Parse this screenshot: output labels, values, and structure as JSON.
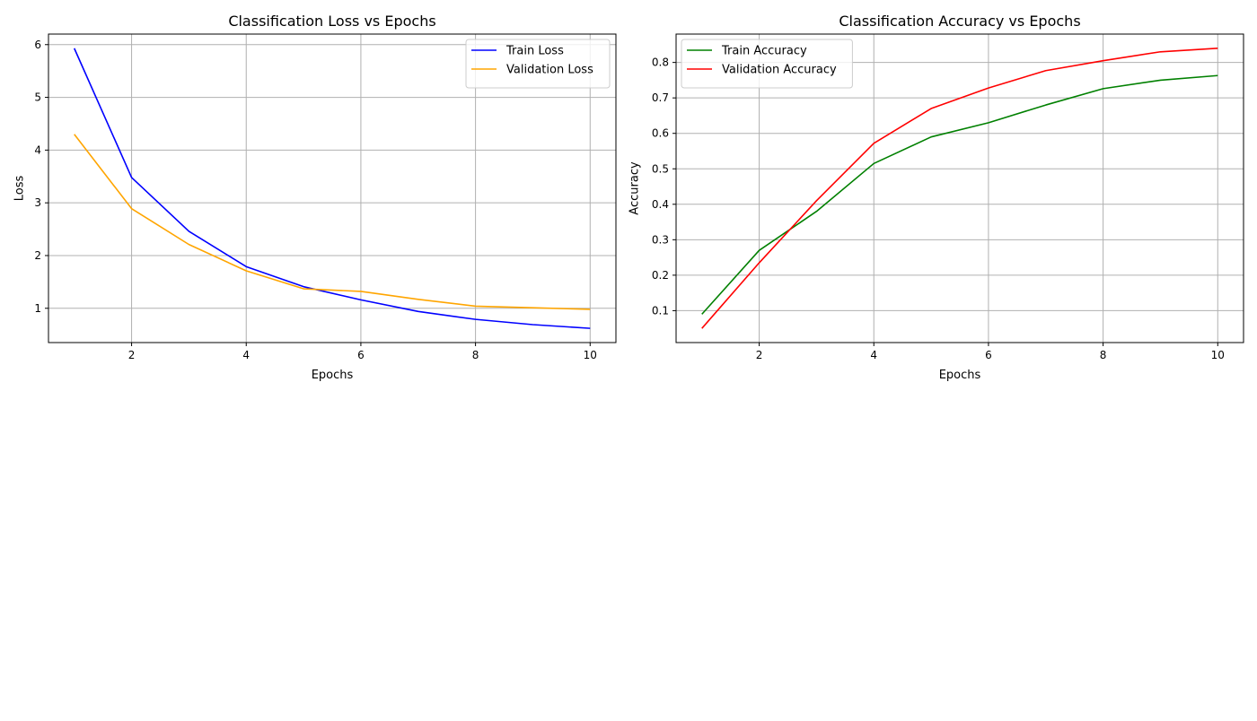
{
  "chart_data": [
    {
      "type": "line",
      "title": "Classification Loss vs Epochs",
      "xlabel": "Epochs",
      "ylabel": "Loss",
      "xlim": [
        0.55,
        10.45
      ],
      "ylim": [
        0.35,
        6.2
      ],
      "xticks": [
        2,
        4,
        6,
        8,
        10
      ],
      "yticks": [
        1,
        2,
        3,
        4,
        5,
        6
      ],
      "grid": true,
      "legend": "top-right",
      "x": [
        1,
        2,
        3,
        4,
        5,
        6,
        7,
        8,
        9,
        10
      ],
      "series": [
        {
          "name": "Train Loss",
          "color": "#0000ff",
          "values": [
            5.93,
            3.48,
            2.46,
            1.79,
            1.41,
            1.16,
            0.94,
            0.79,
            0.69,
            0.62
          ]
        },
        {
          "name": "Validation Loss",
          "color": "#ffa500",
          "values": [
            4.3,
            2.89,
            2.21,
            1.71,
            1.37,
            1.32,
            1.17,
            1.04,
            1.01,
            0.98
          ]
        }
      ]
    },
    {
      "type": "line",
      "title": "Classification Accuracy vs Epochs",
      "xlabel": "Epochs",
      "ylabel": "Accuracy",
      "xlim": [
        0.55,
        10.45
      ],
      "ylim": [
        0.01,
        0.88
      ],
      "xticks": [
        2,
        4,
        6,
        8,
        10
      ],
      "yticks": [
        0.1,
        0.2,
        0.3,
        0.4,
        0.5,
        0.6,
        0.7,
        0.8
      ],
      "grid": true,
      "legend": "top-left",
      "x": [
        1,
        2,
        3,
        4,
        5,
        6,
        7,
        8,
        9,
        10
      ],
      "series": [
        {
          "name": "Train Accuracy",
          "color": "#008000",
          "values": [
            0.09,
            0.27,
            0.38,
            0.515,
            0.59,
            0.63,
            0.68,
            0.726,
            0.75,
            0.763
          ]
        },
        {
          "name": "Validation Accuracy",
          "color": "#ff0000",
          "values": [
            0.05,
            0.235,
            0.41,
            0.572,
            0.67,
            0.728,
            0.777,
            0.805,
            0.83,
            0.84
          ]
        }
      ]
    }
  ]
}
